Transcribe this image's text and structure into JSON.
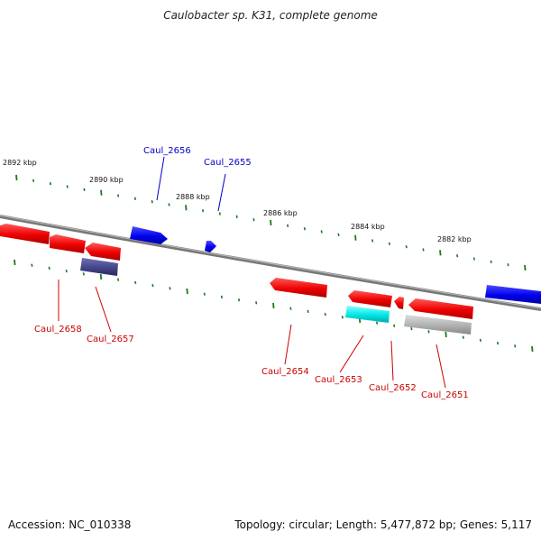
{
  "title": "Caulobacter sp. K31, complete genome",
  "footer": {
    "accession": "Accession: NC_010338",
    "summary": "Topology: circular; Length: 5,477,872 bp; Genes: 5,117"
  },
  "ruler_labels": [
    "2892 kbp",
    "2890 kbp",
    "2888 kbp",
    "2886 kbp",
    "2884 kbp",
    "2882 kbp"
  ],
  "colors": {
    "backbone": "#777777",
    "tick": "#1a7a1a",
    "label_forward": "#0000cc",
    "label_reverse": "#cc0000",
    "red": "#ee0000",
    "blue": "#0000ee",
    "slate": "#44448a",
    "cyan": "#00e5e5",
    "gray": "#b0b0b0"
  },
  "genes": {
    "forward": [
      "Caul_2656",
      "Caul_2655"
    ],
    "reverse": [
      "Caul_2658",
      "Caul_2657",
      "Caul_2654",
      "Caul_2653",
      "Caul_2652",
      "Caul_2651"
    ]
  }
}
